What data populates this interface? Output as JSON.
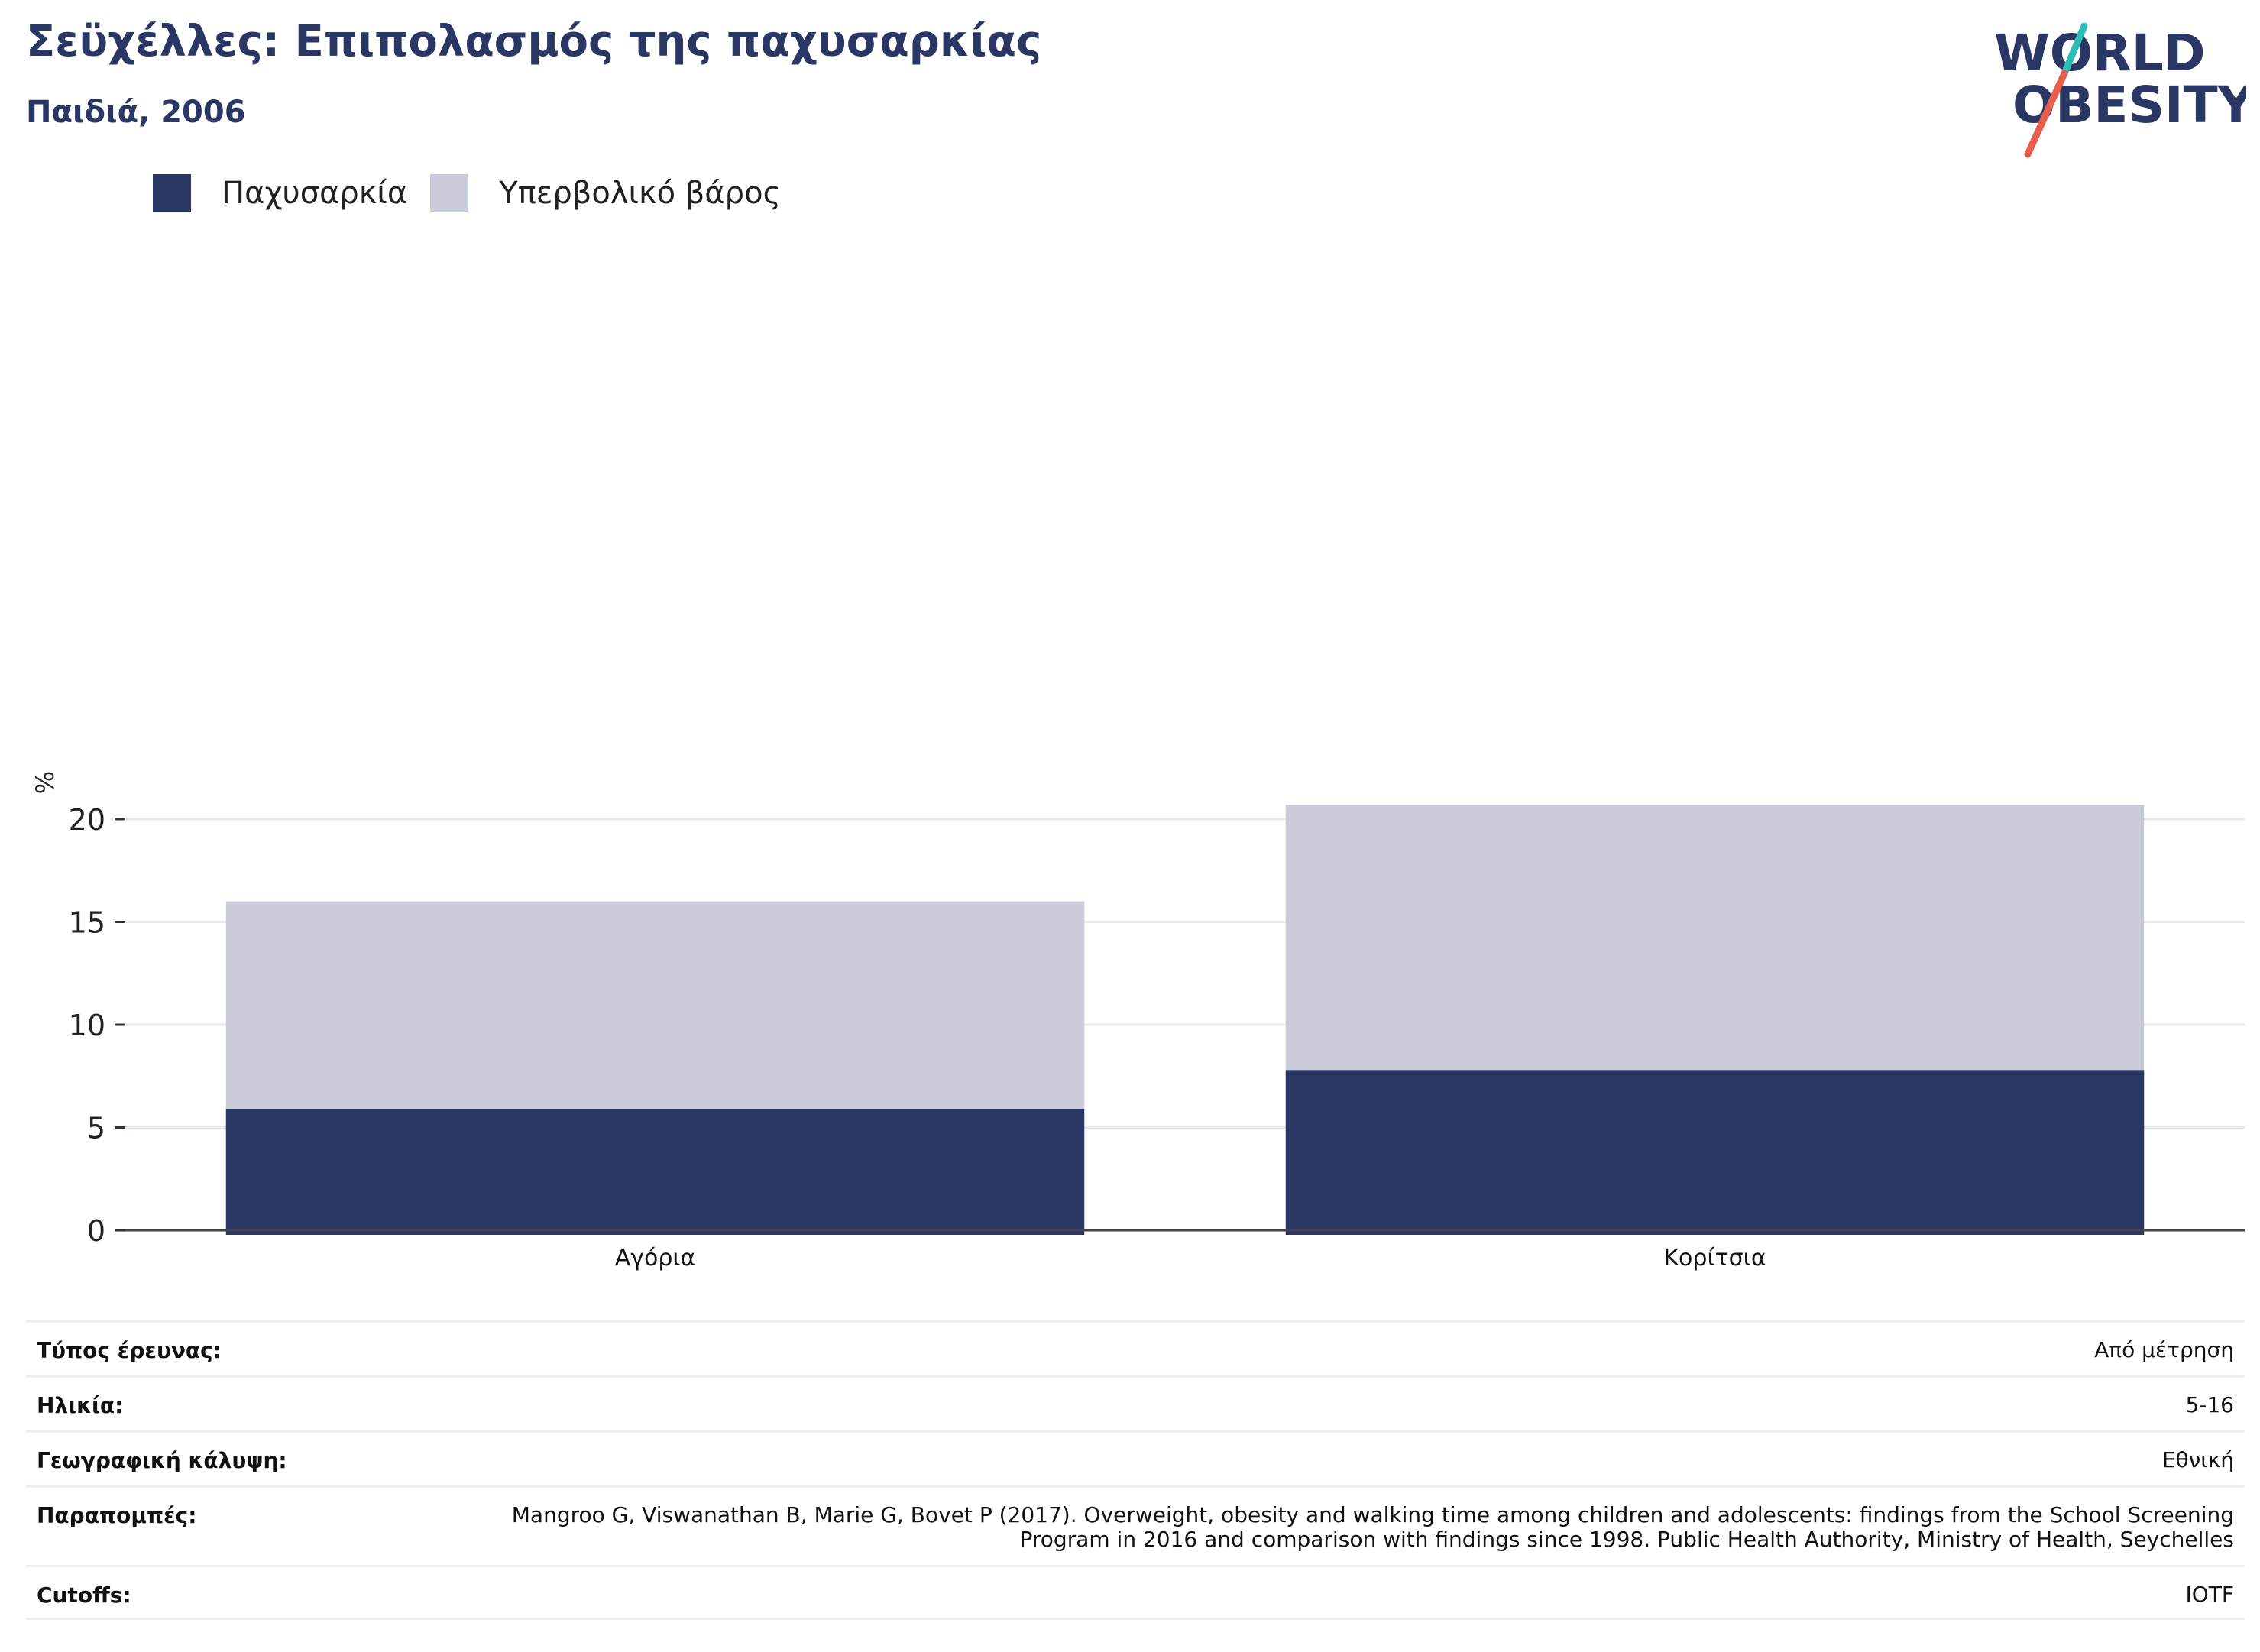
{
  "header": {
    "title": "Σεϋχέλλες: Επιπολασμός της παχυσαρκίας",
    "subtitle": "Παιδιά, 2006"
  },
  "logo": {
    "line1": "WORLD",
    "line2": "OBESITY",
    "slash_top_color": "#2ebdb4",
    "slash_bottom_color": "#e8604c",
    "text_color": "#2a3664"
  },
  "legend": [
    {
      "label": "Παχυσαρκία",
      "color": "#2a3664"
    },
    {
      "label": "Υπερβολικό βάρος",
      "color": "#c9ccd8"
    }
  ],
  "chart_data": {
    "type": "bar",
    "stacked": true,
    "categories": [
      "Αγόρια",
      "Κορίτσια"
    ],
    "series": [
      {
        "name": "Παχυσαρκία",
        "values": [
          5.9,
          7.8
        ],
        "color": "#2a3664"
      },
      {
        "name": "Υπερβολικό βάρος",
        "values": [
          10.1,
          12.9
        ],
        "color": "#c9ccd8"
      }
    ],
    "ylabel": "%",
    "ylim": [
      0,
      22
    ],
    "yticks": [
      0,
      5,
      10,
      15,
      20
    ],
    "grid": true,
    "legend_position": "top-left"
  },
  "meta": [
    {
      "key": "Τύπος έρευνας:",
      "value": "Από μέτρηση"
    },
    {
      "key": "Ηλικία:",
      "value": "5-16"
    },
    {
      "key": "Γεωγραφική κάλυψη:",
      "value": "Εθνική"
    },
    {
      "key": "Παραπομπές:",
      "value": "Mangroo G, Viswanathan B, Marie G, Bovet P (2017). Overweight, obesity and walking time among children and adolescents: findings from the School Screening Program in 2016 and comparison with findings since 1998. Public Health Authority, Ministry of Health, Seychelles"
    },
    {
      "key": "Cutoffs:",
      "value": "IOTF"
    }
  ]
}
